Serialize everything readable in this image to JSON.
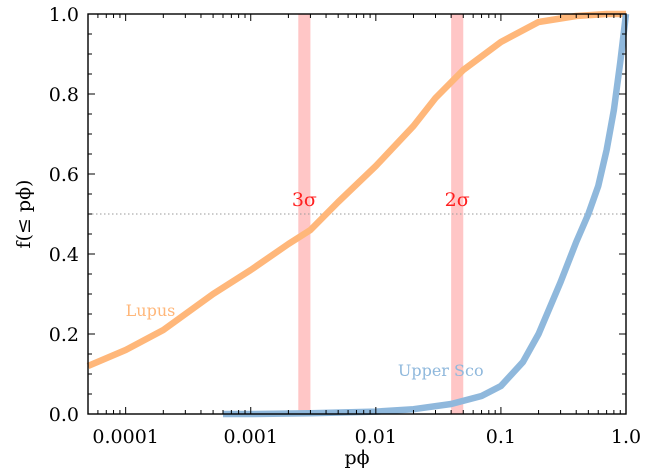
{
  "chart_data": {
    "type": "line",
    "title": "",
    "xlabel": "pϕ",
    "ylabel": "f(≤ pϕ)",
    "xscale": "log",
    "xlim": [
      5e-05,
      1.0
    ],
    "ylim": [
      0.0,
      1.0
    ],
    "x_ticks": [
      0.0001,
      0.001,
      0.01,
      0.1,
      1.0
    ],
    "x_tick_labels": [
      "0.0001",
      "0.001",
      "0.01",
      "0.1",
      "1.0"
    ],
    "y_ticks": [
      0.0,
      0.2,
      0.4,
      0.6,
      0.8,
      1.0
    ],
    "y_tick_labels": [
      "0.0",
      "0.2",
      "0.4",
      "0.6",
      "0.8",
      "1.0"
    ],
    "grid": false,
    "reference_line": {
      "y": 0.5,
      "style": "dotted",
      "color": "#999999"
    },
    "bands": [
      {
        "label": "3σ",
        "x_min": 0.0024,
        "x_max": 0.003,
        "color": "#ffb3b3"
      },
      {
        "label": "2σ",
        "x_min": 0.04,
        "x_max": 0.05,
        "color": "#ffb3b3"
      }
    ],
    "series": [
      {
        "name": "Lupus",
        "color": "#ffb77a",
        "label_at": [
          0.0001,
          0.26
        ],
        "x": [
          5e-05,
          0.0001,
          0.0002,
          0.0005,
          0.001,
          0.002,
          0.003,
          0.005,
          0.01,
          0.02,
          0.03,
          0.05,
          0.1,
          0.2,
          0.4,
          0.7,
          1.0
        ],
        "y": [
          0.12,
          0.16,
          0.21,
          0.3,
          0.36,
          0.425,
          0.46,
          0.53,
          0.62,
          0.72,
          0.79,
          0.86,
          0.93,
          0.98,
          0.995,
          1.0,
          1.0
        ]
      },
      {
        "name": "Upper Sco",
        "color": "#8fb8dc",
        "label_at": [
          0.015,
          0.11
        ],
        "x": [
          0.0006,
          0.001,
          0.003,
          0.01,
          0.02,
          0.04,
          0.07,
          0.1,
          0.15,
          0.2,
          0.3,
          0.4,
          0.5,
          0.6,
          0.7,
          0.8,
          0.9,
          1.0
        ],
        "y": [
          0.0,
          0.0,
          0.002,
          0.006,
          0.012,
          0.025,
          0.045,
          0.07,
          0.13,
          0.2,
          0.33,
          0.43,
          0.5,
          0.57,
          0.66,
          0.76,
          0.88,
          1.0
        ]
      }
    ]
  }
}
